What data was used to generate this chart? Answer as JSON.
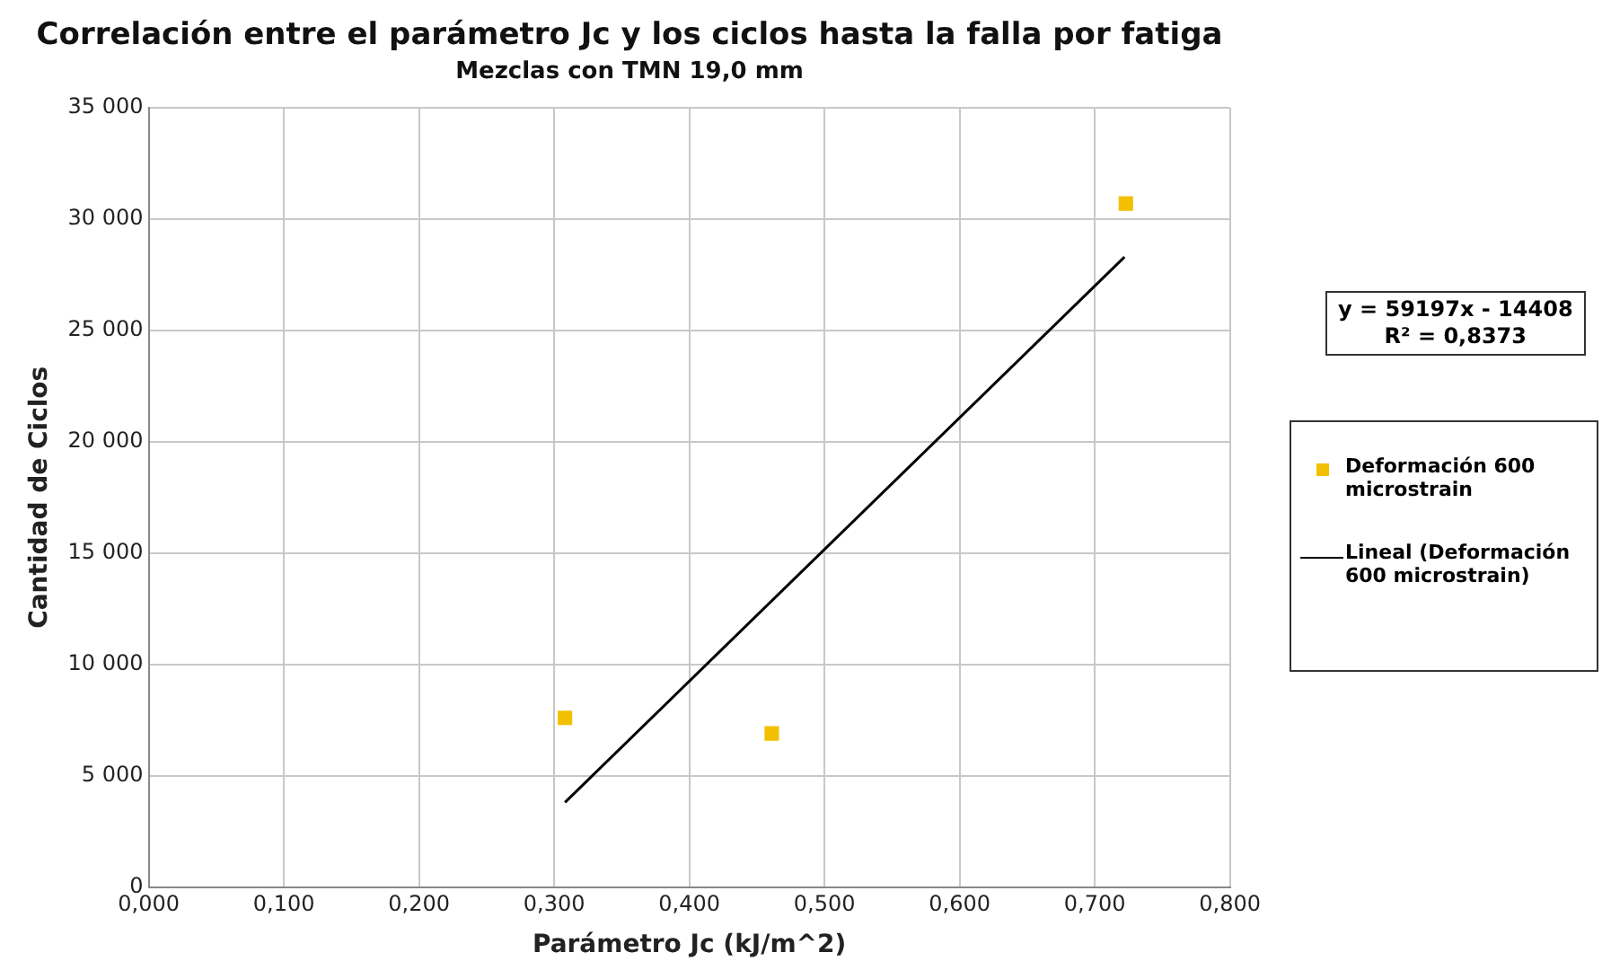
{
  "chart_data": {
    "type": "scatter",
    "title": "Correlación entre el parámetro Jc y los ciclos hasta la falla por fatiga",
    "subtitle": "Mezclas con TMN 19,0 mm",
    "xlabel": "Parámetro Jc (kJ/m^2)",
    "ylabel": "Cantidad de Ciclos",
    "series": [
      {
        "name": "Deformación 600 microstrain",
        "type": "scatter",
        "color": "#f2c000",
        "marker": "square",
        "x": [
          0.308,
          0.461,
          0.723
        ],
        "values": [
          7600,
          6900,
          30700
        ]
      },
      {
        "name": "Lineal (Deformación 600 microstrain)",
        "type": "line",
        "color": "#000000",
        "marker": "none",
        "line_style": "solid",
        "x": [
          0.308,
          0.722
        ],
        "values": [
          3800,
          28300
        ]
      }
    ],
    "annotations": [
      "y = 59197x - 14408",
      "R² = 0,8373"
    ],
    "xlim": [
      0,
      0.8
    ],
    "xticks": [
      {
        "value": 0,
        "label": "0,000"
      },
      {
        "value": 0.1,
        "label": "0,100"
      },
      {
        "value": 0.2,
        "label": "0,200"
      },
      {
        "value": 0.3,
        "label": "0,300"
      },
      {
        "value": 0.4,
        "label": "0,400"
      },
      {
        "value": 0.5,
        "label": "0,500"
      },
      {
        "value": 0.6,
        "label": "0,600"
      },
      {
        "value": 0.7,
        "label": "0,700"
      },
      {
        "value": 0.8,
        "label": "0,800"
      }
    ],
    "ylim": [
      0,
      35000
    ],
    "yticks": [
      0,
      {
        "value": 5000,
        "label": "5 000"
      },
      {
        "value": 10000,
        "label": "10 000"
      },
      {
        "value": 15000,
        "label": "15 000"
      },
      {
        "value": 20000,
        "label": "20 000"
      },
      {
        "value": 25000,
        "label": "25 000"
      },
      {
        "value": 30000,
        "label": "30 000"
      },
      {
        "value": 35000,
        "label": "35 000"
      }
    ],
    "grid": true,
    "legend": "right"
  }
}
